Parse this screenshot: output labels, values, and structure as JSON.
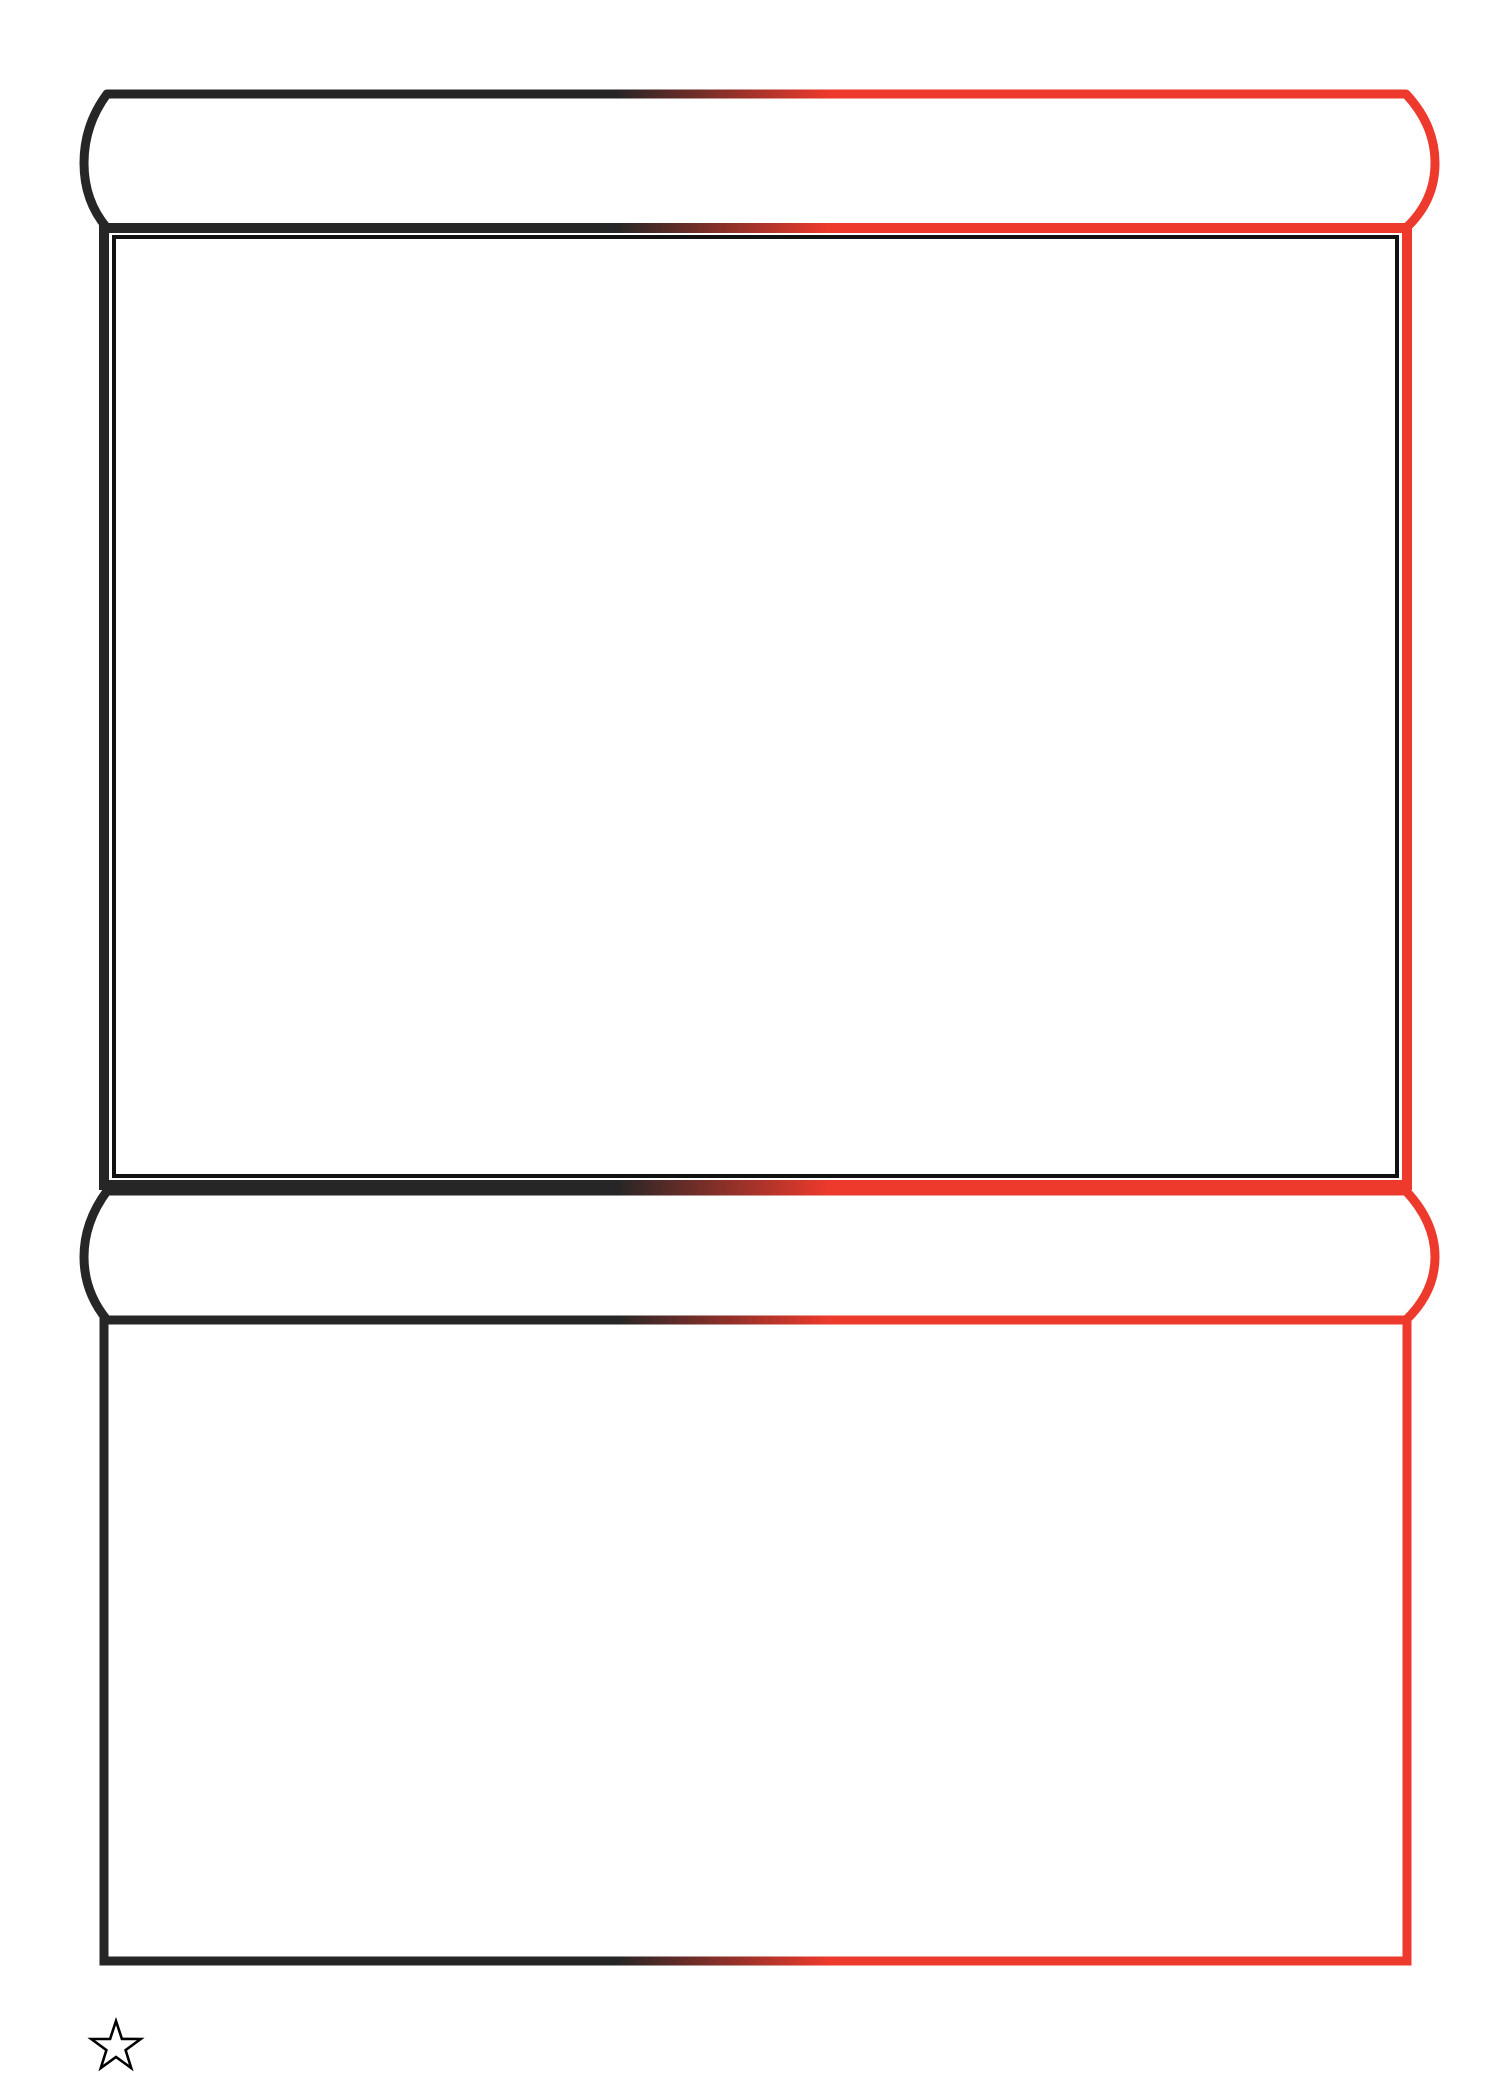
{
  "theme": {
    "gradient_start": "#262626",
    "gradient_end": "#ee3a2c",
    "inner_border": "#111111",
    "background": "#ffffff",
    "star_stroke": "#000000"
  },
  "header_banner": {
    "title": ""
  },
  "upper_panel": {
    "content": ""
  },
  "middle_banner": {
    "title": ""
  },
  "lower_panel": {
    "content": ""
  },
  "footer": {
    "icon": "star-outline-icon"
  }
}
